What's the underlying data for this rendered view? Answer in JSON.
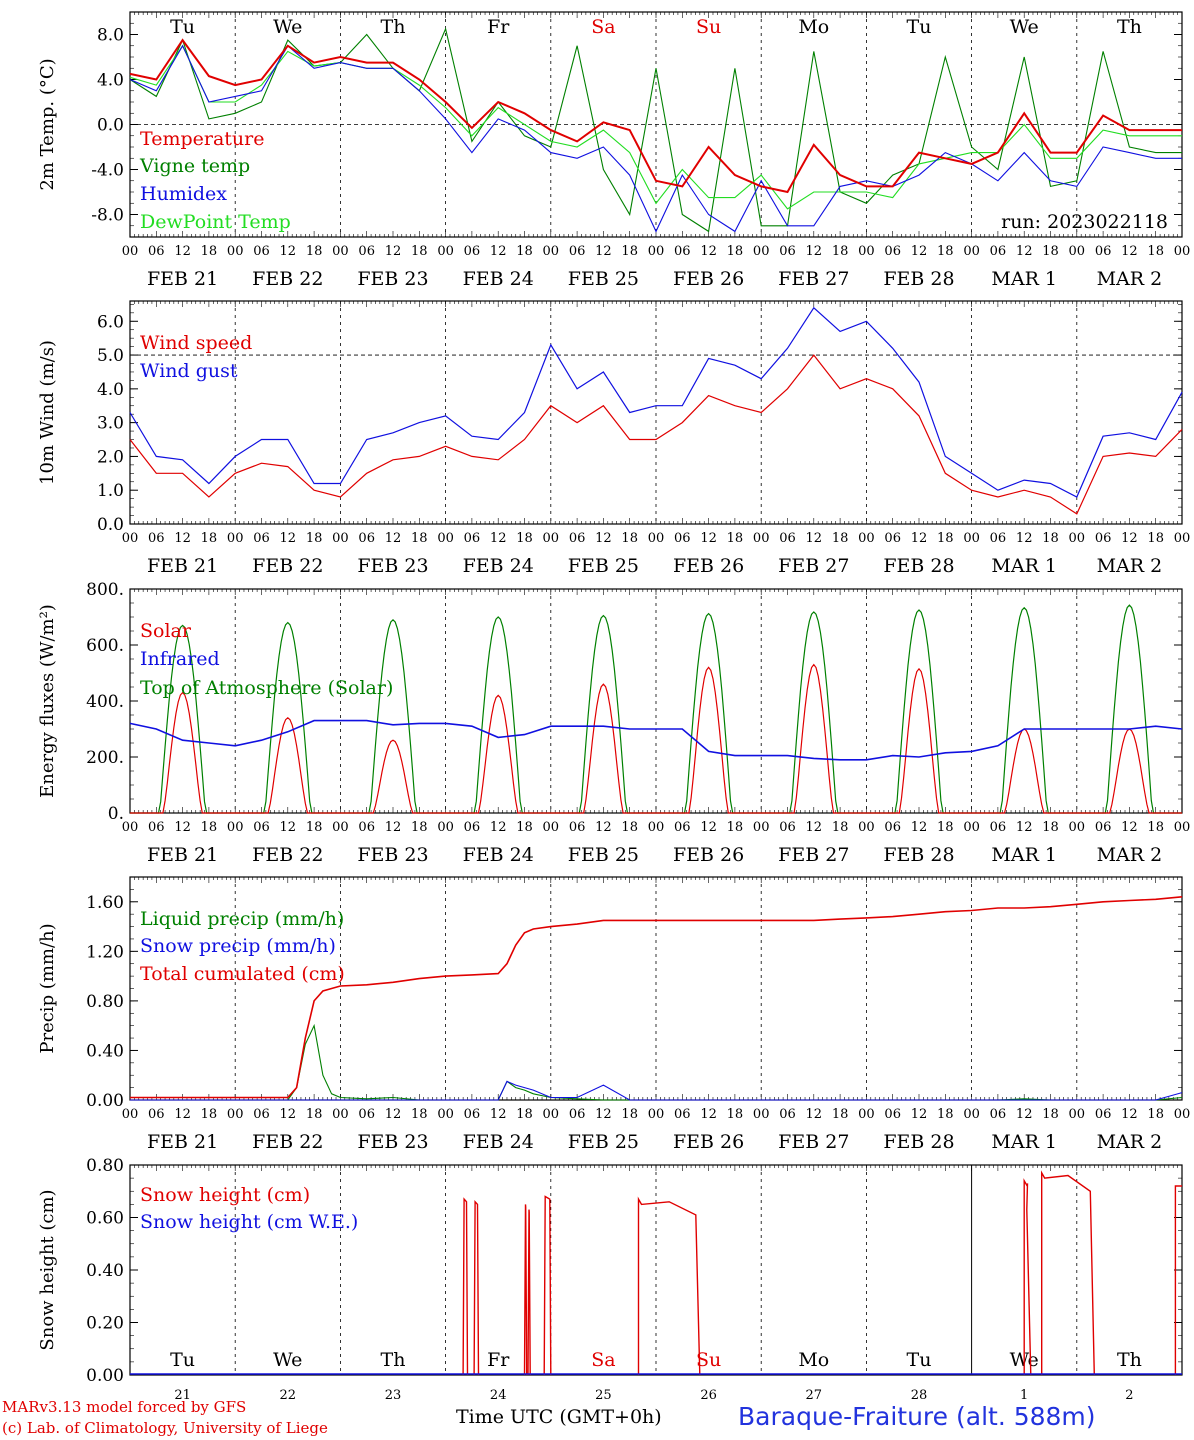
{
  "day_names": [
    "Tu",
    "We",
    "Th",
    "Fr",
    "Sa",
    "Su",
    "Mo",
    "Tu",
    "We",
    "Th"
  ],
  "weekend_flags": [
    false,
    false,
    false,
    false,
    true,
    true,
    false,
    false,
    false,
    false
  ],
  "date_labels": [
    "FEB 21",
    "FEB 22",
    "FEB 23",
    "FEB 24",
    "FEB 25",
    "FEB 26",
    "FEB 27",
    "FEB 28",
    "MAR  1",
    "MAR  2"
  ],
  "day_numbers": [
    "21",
    "22",
    "23",
    "24",
    "25",
    "26",
    "27",
    "28",
    "1",
    "2"
  ],
  "hour_ticks": [
    "00",
    "06",
    "12",
    "18"
  ],
  "last_hour_tick": "00",
  "footer": {
    "model": "MARv3.13 model forced by GFS",
    "credit": "(c) Lab. of Climatology, University of Liege",
    "time_label": "Time UTC (GMT+0h)",
    "station": "Baraque-Fraiture (alt. 588m)"
  },
  "colors": {
    "red": "#e00000",
    "green": "#008000",
    "blue": "#1010e0",
    "lightgreen": "#22dd22",
    "grid": "#000000"
  },
  "chart_data": [
    {
      "type": "line",
      "ylabel": "2m Temp. (°C)",
      "ylim": [
        -10,
        10
      ],
      "yticks": [
        8,
        4,
        0,
        -4,
        -8
      ],
      "ytick_labels": [
        "8.0",
        "4.0",
        "0.0",
        "-4.0",
        "-8.0"
      ],
      "ref_line": 0,
      "annotation": "run: 2023022118",
      "x_hours_since_feb21_00": [
        0,
        6,
        12,
        18,
        24,
        30,
        36,
        42,
        48,
        54,
        60,
        66,
        72,
        78,
        84,
        90,
        96,
        102,
        108,
        114,
        120,
        126,
        132,
        138,
        144,
        150,
        156,
        162,
        168,
        174,
        180,
        186,
        192,
        198,
        204,
        210,
        216,
        222,
        228,
        234,
        240
      ],
      "series": [
        {
          "name": "Temperature",
          "color": "red",
          "values": [
            4.5,
            4.0,
            7.5,
            4.3,
            3.5,
            4.0,
            7.0,
            5.5,
            6.0,
            5.5,
            5.5,
            4.0,
            2.0,
            -0.3,
            2.0,
            1.0,
            -0.5,
            -1.5,
            0.2,
            -0.5,
            -5.0,
            -5.5,
            -2.0,
            -4.5,
            -5.5,
            -6.0,
            -1.8,
            -4.5,
            -5.5,
            -5.5,
            -2.5,
            -3.0,
            -3.5,
            -2.5,
            1.0,
            -2.5,
            -2.5,
            0.8,
            -0.5,
            -0.5,
            -0.5
          ]
        },
        {
          "name": "Vigne temp",
          "color": "green",
          "values": [
            4.0,
            2.5,
            7.5,
            0.5,
            1.0,
            2.0,
            7.5,
            5.2,
            5.5,
            8.0,
            5.0,
            3.0,
            8.5,
            -1.5,
            2.0,
            -1.0,
            -2.0,
            7.0,
            -4.0,
            -8.0,
            5.0,
            -8.0,
            -9.5,
            5.0,
            -9.0,
            -9.0,
            6.5,
            -6.0,
            -7.0,
            -4.5,
            -3.5,
            6.0,
            -2.0,
            -4.0,
            6.0,
            -5.5,
            -5.0,
            6.5,
            -2.0,
            -2.5,
            -2.5
          ]
        },
        {
          "name": "Humidex",
          "color": "blue",
          "values": [
            4.0,
            3.0,
            7.0,
            2.0,
            2.5,
            3.0,
            7.0,
            5.0,
            5.5,
            5.0,
            5.0,
            3.0,
            0.5,
            -2.5,
            0.5,
            -0.5,
            -2.5,
            -3.0,
            -2.0,
            -4.5,
            -9.5,
            -4.5,
            -8.0,
            -9.5,
            -5.0,
            -9.0,
            -9.0,
            -5.5,
            -5.0,
            -5.5,
            -4.5,
            -2.5,
            -3.5,
            -5.0,
            -2.5,
            -5.0,
            -5.5,
            -2.0,
            -2.5,
            -3.0,
            -3.0
          ]
        },
        {
          "name": "DewPoint Temp",
          "color": "lightgreen",
          "values": [
            4.2,
            3.5,
            7.0,
            2.0,
            2.0,
            3.5,
            6.5,
            5.2,
            5.5,
            5.0,
            5.0,
            3.5,
            1.5,
            -1.0,
            1.5,
            0.0,
            -1.5,
            -2.0,
            -0.5,
            -2.5,
            -7.0,
            -4.0,
            -6.5,
            -6.5,
            -4.5,
            -7.5,
            -6.0,
            -6.0,
            -6.0,
            -6.5,
            -3.5,
            -3.0,
            -2.5,
            -2.5,
            0.0,
            -3.0,
            -3.0,
            -0.5,
            -1.0,
            -1.0,
            -1.0
          ]
        }
      ]
    },
    {
      "type": "line",
      "ylabel": "10m Wind (m/s)",
      "ylim": [
        0,
        6.6
      ],
      "yticks": [
        6,
        5,
        4,
        3,
        2,
        1,
        0
      ],
      "ytick_labels": [
        "6.0",
        "5.0",
        "4.0",
        "3.0",
        "2.0",
        "1.0",
        "0.0"
      ],
      "ref_line": 5,
      "x_hours_since_feb21_00": [
        0,
        6,
        12,
        18,
        24,
        30,
        36,
        42,
        48,
        54,
        60,
        66,
        72,
        78,
        84,
        90,
        96,
        102,
        108,
        114,
        120,
        126,
        132,
        138,
        144,
        150,
        156,
        162,
        168,
        174,
        180,
        186,
        192,
        198,
        204,
        210,
        216,
        222,
        228,
        234,
        240
      ],
      "series": [
        {
          "name": "Wind speed",
          "color": "red",
          "values": [
            2.5,
            1.5,
            1.5,
            0.8,
            1.5,
            1.8,
            1.7,
            1.0,
            0.8,
            1.5,
            1.9,
            2.0,
            2.3,
            2.0,
            1.9,
            2.5,
            3.5,
            3.0,
            3.5,
            2.5,
            2.5,
            3.0,
            3.8,
            3.5,
            3.3,
            4.0,
            5.0,
            4.0,
            4.3,
            4.0,
            3.2,
            1.5,
            1.0,
            0.8,
            1.0,
            0.8,
            0.3,
            2.0,
            2.1,
            2.0,
            2.8
          ]
        },
        {
          "name": "Wind gust",
          "color": "blue",
          "values": [
            3.3,
            2.0,
            1.9,
            1.2,
            2.0,
            2.5,
            2.5,
            1.2,
            1.2,
            2.5,
            2.7,
            3.0,
            3.2,
            2.6,
            2.5,
            3.3,
            5.3,
            4.0,
            4.5,
            3.3,
            3.5,
            3.5,
            4.9,
            4.7,
            4.3,
            5.2,
            6.4,
            5.7,
            6.0,
            5.2,
            4.2,
            2.0,
            1.5,
            1.0,
            1.3,
            1.2,
            0.8,
            2.6,
            2.7,
            2.5,
            3.9
          ]
        }
      ]
    },
    {
      "type": "line",
      "ylabel": "Energy fluxes (W/m²)",
      "ylim": [
        0,
        800
      ],
      "yticks": [
        800,
        600,
        400,
        200,
        0
      ],
      "ytick_labels": [
        "800.",
        "600.",
        "400.",
        "200.",
        "0."
      ],
      "solar_peaks_noon": [
        430,
        340,
        260,
        420,
        460,
        520,
        530,
        515,
        300,
        300
      ],
      "toa_peaks_noon": [
        670,
        680,
        690,
        700,
        705,
        712,
        718,
        725,
        733,
        742
      ],
      "x_hours_since_feb21_00": [
        0,
        6,
        12,
        18,
        24,
        30,
        36,
        42,
        48,
        54,
        60,
        66,
        72,
        78,
        84,
        90,
        96,
        102,
        108,
        114,
        120,
        126,
        132,
        138,
        144,
        150,
        156,
        162,
        168,
        174,
        180,
        186,
        192,
        198,
        204,
        210,
        216,
        222,
        228,
        234,
        240
      ],
      "series": [
        {
          "name": "Solar",
          "color": "red"
        },
        {
          "name": "Infrared",
          "color": "blue",
          "values": [
            320,
            300,
            260,
            250,
            240,
            260,
            290,
            330,
            330,
            330,
            315,
            320,
            320,
            310,
            270,
            280,
            310,
            310,
            310,
            300,
            300,
            300,
            220,
            205,
            205,
            205,
            195,
            190,
            190,
            205,
            200,
            215,
            220,
            240,
            300,
            300,
            300,
            300,
            300,
            310,
            300
          ]
        },
        {
          "name": "Top of Atmosphere (Solar)",
          "color": "green"
        }
      ]
    },
    {
      "type": "line",
      "ylabel": "Precip (mm/h)",
      "ylim": [
        0,
        1.8
      ],
      "yticks": [
        1.6,
        1.2,
        0.8,
        0.4,
        0.0
      ],
      "ytick_labels": [
        "1.60",
        "1.20",
        "0.80",
        "0.40",
        "0.00"
      ],
      "x_hours_since_feb21_00": [
        0,
        6,
        12,
        18,
        24,
        30,
        36,
        38,
        40,
        42,
        44,
        46,
        48,
        54,
        60,
        66,
        72,
        78,
        84,
        86,
        88,
        90,
        92,
        96,
        102,
        108,
        114,
        120,
        126,
        132,
        138,
        144,
        150,
        156,
        162,
        168,
        174,
        180,
        186,
        192,
        198,
        204,
        210,
        216,
        222,
        228,
        234,
        240
      ],
      "series": [
        {
          "name": "Liquid precip (mm/h)",
          "color": "green",
          "values": [
            0,
            0,
            0,
            0,
            0,
            0,
            0,
            0.1,
            0.45,
            0.6,
            0.2,
            0.05,
            0.02,
            0.01,
            0.02,
            0,
            0,
            0,
            0,
            0.15,
            0.1,
            0.08,
            0.05,
            0.02,
            0.01,
            0,
            0,
            0,
            0,
            0,
            0,
            0,
            0,
            0,
            0,
            0,
            0,
            0,
            0,
            0,
            0,
            0.01,
            0,
            0,
            0,
            0,
            0,
            0.02
          ]
        },
        {
          "name": "Snow precip (mm/h)",
          "color": "blue",
          "values": [
            0,
            0,
            0,
            0,
            0,
            0,
            0,
            0,
            0,
            0,
            0,
            0,
            0,
            0,
            0,
            0,
            0,
            0,
            0,
            0.15,
            0.12,
            0.1,
            0.08,
            0.02,
            0.02,
            0.12,
            0,
            0,
            0,
            0,
            0,
            0,
            0,
            0,
            0,
            0,
            0,
            0,
            0,
            0,
            0,
            0,
            0,
            0,
            0,
            0,
            0,
            0.06
          ]
        },
        {
          "name": "Total cumulated (cm)",
          "color": "red",
          "values": [
            0.02,
            0.02,
            0.02,
            0.02,
            0.02,
            0.02,
            0.02,
            0.1,
            0.5,
            0.8,
            0.88,
            0.9,
            0.92,
            0.93,
            0.95,
            0.98,
            1.0,
            1.01,
            1.02,
            1.1,
            1.25,
            1.35,
            1.38,
            1.4,
            1.42,
            1.45,
            1.45,
            1.45,
            1.45,
            1.45,
            1.45,
            1.45,
            1.45,
            1.45,
            1.46,
            1.47,
            1.48,
            1.5,
            1.52,
            1.53,
            1.55,
            1.55,
            1.56,
            1.58,
            1.6,
            1.61,
            1.62,
            1.64
          ]
        }
      ]
    },
    {
      "type": "line",
      "ylabel": "Snow height (cm)",
      "ylim": [
        0,
        0.8
      ],
      "yticks": [
        0.8,
        0.6,
        0.4,
        0.2,
        0.0
      ],
      "ytick_labels": [
        "0.80",
        "0.60",
        "0.40",
        "0.20",
        "0.00"
      ],
      "series": [
        {
          "name": "Snow height (cm)",
          "color": "red",
          "pulses": [
            [
              76.0,
              77.0,
              0.67
            ],
            [
              78.5,
              79.5,
              0.66
            ],
            [
              90.0,
              90.5,
              0.65
            ],
            [
              90.8,
              91.3,
              0.63
            ],
            [
              94.5,
              96.0,
              0.68
            ]
          ],
          "blocks": [
            [
              116,
              130,
              0.67,
              0.61
            ],
            [
              204,
              205.5,
              0.74,
              0.63
            ],
            [
              208,
              220,
              0.77,
              0.7
            ]
          ],
          "end_spike": [
            238.5,
            0.72
          ]
        },
        {
          "name": "Snow height (cm W.E.)",
          "color": "blue",
          "values": [
            0
          ]
        }
      ]
    }
  ]
}
